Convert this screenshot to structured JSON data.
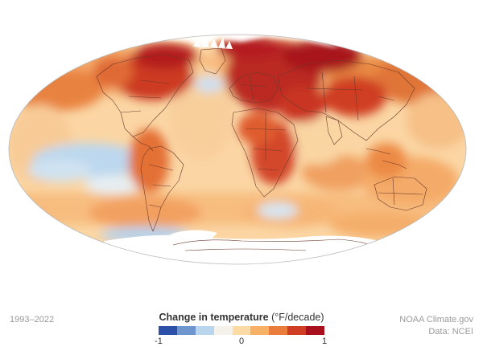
{
  "period": "1993–2022",
  "legend": {
    "title_bold": "Change in temperature",
    "title_unit": " (°F/decade)",
    "ticks": [
      "-1",
      "0",
      "1"
    ],
    "tick_values": [
      -1,
      0,
      1
    ],
    "range": [
      -1,
      1
    ],
    "colors": [
      "#2c4fa8",
      "#6f95cf",
      "#b9d6ee",
      "#f4f2ea",
      "#fbdba3",
      "#f6b166",
      "#ea7d3c",
      "#cf3d22",
      "#a8101e"
    ]
  },
  "credit": {
    "line1": "NOAA Climate.gov",
    "line2": "Data: NCEI"
  },
  "map": {
    "projection": "mollweide",
    "ocean_color": "#fbd4a0",
    "land_border_color": "#6b3a2a",
    "no_data_color": "#ffffff"
  }
}
